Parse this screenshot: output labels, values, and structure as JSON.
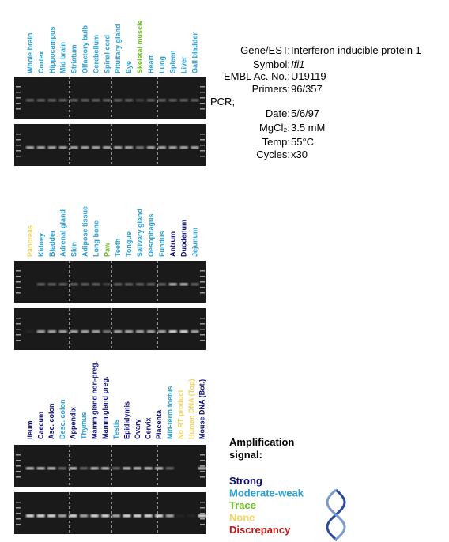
{
  "panels": [
    {
      "lanes": [
        {
          "label": "Whole brain",
          "color": "#2a9fd6"
        },
        {
          "label": "Cortex",
          "color": "#2a9fd6"
        },
        {
          "label": "Hippocampus",
          "color": "#2a9fd6"
        },
        {
          "label": "Mid brain",
          "color": "#2a9fd6"
        },
        {
          "label": "Striatum",
          "color": "#2a9fd6"
        },
        {
          "label": "Olfactory bulb",
          "color": "#2a9fd6"
        },
        {
          "label": "Cerebellum",
          "color": "#2a9fd6"
        },
        {
          "label": "Spinal cord",
          "color": "#2a9fd6"
        },
        {
          "label": "Pituitary gland",
          "color": "#2a9fd6"
        },
        {
          "label": "Eye",
          "color": "#2a9fd6"
        },
        {
          "label": "Skeletal muscle",
          "color": "#6cbf1e"
        },
        {
          "label": "Heart",
          "color": "#2a9fd6"
        },
        {
          "label": "Lung",
          "color": "#2a9fd6"
        },
        {
          "label": "Spleen",
          "color": "#2a9fd6"
        },
        {
          "label": "Liver",
          "color": "#2a9fd6"
        },
        {
          "label": "Gall bladder",
          "color": "#2a9fd6"
        }
      ]
    },
    {
      "lanes": [
        {
          "label": "Pancreas",
          "color": "#f2d45c"
        },
        {
          "label": "Kidney",
          "color": "#2a9fd6"
        },
        {
          "label": "Bladder",
          "color": "#2a9fd6"
        },
        {
          "label": "Adrenal gland",
          "color": "#2a9fd6"
        },
        {
          "label": "Skin",
          "color": "#2a9fd6"
        },
        {
          "label": "Adipose tissue",
          "color": "#2a9fd6"
        },
        {
          "label": "Long bone",
          "color": "#2a9fd6"
        },
        {
          "label": "Paw",
          "color": "#6cbf1e"
        },
        {
          "label": "Teeth",
          "color": "#2a9fd6"
        },
        {
          "label": "Tongue",
          "color": "#2a9fd6"
        },
        {
          "label": "Salivary gland",
          "color": "#2a9fd6"
        },
        {
          "label": "Oesophagus",
          "color": "#2a9fd6"
        },
        {
          "label": "Fundus",
          "color": "#2a9fd6"
        },
        {
          "label": "Antrum",
          "color": "#0a0a78"
        },
        {
          "label": "Duodenum",
          "color": "#0a0a78"
        },
        {
          "label": "Jejunum",
          "color": "#2a9fd6"
        }
      ]
    },
    {
      "lanes": [
        {
          "label": "Ileum",
          "color": "#0a0a78"
        },
        {
          "label": "Caecum",
          "color": "#0a0a78"
        },
        {
          "label": "Asc. colon",
          "color": "#0a0a78"
        },
        {
          "label": "Desc. colon",
          "color": "#2a9fd6"
        },
        {
          "label": "Appendix",
          "color": "#0a0a78"
        },
        {
          "label": "Thymus",
          "color": "#2a9fd6"
        },
        {
          "label": "Mamm.gland non-preg.",
          "color": "#0a0a78"
        },
        {
          "label": "Mamm.gland preg.",
          "color": "#0a0a78"
        },
        {
          "label": "Testis",
          "color": "#2a9fd6"
        },
        {
          "label": "Epididymis",
          "color": "#0a0a78"
        },
        {
          "label": "Ovary",
          "color": "#0a0a78"
        },
        {
          "label": "Cervix",
          "color": "#0a0a78"
        },
        {
          "label": "Placenta",
          "color": "#0a0a78"
        },
        {
          "label": "Mid-term foetus",
          "color": "#2a9fd6"
        },
        {
          "label": "No RT product",
          "color": "#f2d45c"
        },
        {
          "label": "Human DNA (Top)",
          "color": "#f2d45c"
        },
        {
          "label": "Mouse DNA (Bot.)",
          "color": "#0a0a78"
        }
      ]
    }
  ],
  "info": [
    {
      "label": "Gene/EST:",
      "value": "Interferon inducible protein 1"
    },
    {
      "label": "Symbol:",
      "value": "Ifi1"
    },
    {
      "label": "EMBL Ac. No.:",
      "value": "U19119"
    },
    {
      "label": "Primers:",
      "value": "96/357"
    },
    {
      "label": "PCR;",
      "value": null
    },
    {
      "label": "Date:",
      "value": "5/6/97"
    },
    {
      "label": "MgCl₂:",
      "value": "3.5 mM"
    },
    {
      "label": "Temp:",
      "value": "55°C"
    },
    {
      "label": "Cycles:",
      "value": "x30"
    }
  ],
  "legend": {
    "title": [
      "Amplification",
      "signal:"
    ],
    "items": [
      {
        "label": "Strong",
        "color": "#0a0a78"
      },
      {
        "label": "Moderate-weak",
        "color": "#2a9fd6"
      },
      {
        "label": "Trace",
        "color": "#6cbf1e"
      },
      {
        "label": "None",
        "color": "#f2d45c"
      },
      {
        "label": "Discrepancy",
        "color": "#c01818"
      }
    ]
  }
}
